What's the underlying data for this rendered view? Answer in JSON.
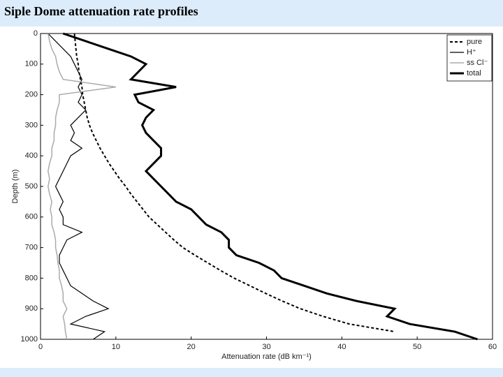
{
  "header": {
    "title": "Siple Dome attenuation rate profiles"
  },
  "chart_data": {
    "type": "line",
    "xlabel": "Attenuation rate (dB km⁻¹)",
    "ylabel": "Depth (m)",
    "y": [
      0,
      25,
      50,
      75,
      100,
      125,
      150,
      175,
      200,
      225,
      250,
      275,
      300,
      325,
      350,
      375,
      400,
      425,
      450,
      475,
      500,
      525,
      550,
      575,
      600,
      625,
      650,
      675,
      700,
      725,
      750,
      775,
      800,
      825,
      850,
      875,
      900,
      925,
      950,
      975,
      1000
    ],
    "xlim": [
      0,
      60
    ],
    "xticks": [
      0,
      10,
      20,
      30,
      40,
      50,
      60
    ],
    "ylim": [
      0,
      1000
    ],
    "yticks": [
      0,
      100,
      200,
      300,
      400,
      500,
      600,
      700,
      800,
      900,
      1000
    ],
    "y_inverted": true,
    "legend": "upper right",
    "series": [
      {
        "name": "pure",
        "color": "#000000",
        "style": "dashed",
        "width": 2,
        "values": [
          4.5,
          4.6,
          4.7,
          4.8,
          5.0,
          5.1,
          5.3,
          5.5,
          5.6,
          5.8,
          6.0,
          6.2,
          6.5,
          6.9,
          7.4,
          7.9,
          8.5,
          9.1,
          9.8,
          10.5,
          11.3,
          12.0,
          12.8,
          13.6,
          14.4,
          15.5,
          16.6,
          17.7,
          18.9,
          20.5,
          22.2,
          23.9,
          25.7,
          27.8,
          29.9,
          32.1,
          34.5,
          37.5,
          41,
          47,
          null
        ]
      },
      {
        "name": "H⁺",
        "color": "#000000",
        "style": "solid",
        "width": 1.2,
        "values": [
          1,
          2,
          3,
          4,
          4.5,
          5,
          5.5,
          5,
          5.5,
          5,
          6,
          5,
          4,
          4.5,
          4,
          5.5,
          4,
          3.5,
          3,
          2.5,
          2,
          2.5,
          3,
          2.5,
          3,
          3,
          5.5,
          3.5,
          3,
          2.5,
          2.5,
          3,
          3.5,
          4,
          5.5,
          7,
          9,
          6,
          4,
          8.5,
          7
        ]
      },
      {
        "name": "ss Cl⁻",
        "color": "#aaaaaa",
        "style": "solid",
        "width": 1.5,
        "values": [
          1,
          1.2,
          1.5,
          2,
          2.2,
          2.5,
          3,
          10,
          2.5,
          2.5,
          2.2,
          2,
          2,
          1.8,
          1.8,
          1.5,
          1.5,
          1.2,
          1,
          1.2,
          1,
          1.2,
          1.5,
          1.3,
          1.5,
          1.5,
          1.8,
          2,
          2,
          2.2,
          2.3,
          2.5,
          2.5,
          2.8,
          3,
          3,
          3.5,
          3,
          3.2,
          3.3,
          3.5
        ]
      },
      {
        "name": "total",
        "color": "#000000",
        "style": "solid",
        "width": 3,
        "values": [
          3,
          6,
          9,
          12,
          14,
          13,
          12,
          18,
          12.5,
          13,
          15,
          14,
          13.5,
          14,
          15,
          16,
          16,
          15,
          14,
          15,
          16,
          17,
          18,
          20,
          21,
          22,
          24,
          25,
          25,
          26,
          29,
          31,
          32,
          35,
          38,
          42,
          47,
          46,
          49,
          55,
          58
        ]
      }
    ]
  }
}
